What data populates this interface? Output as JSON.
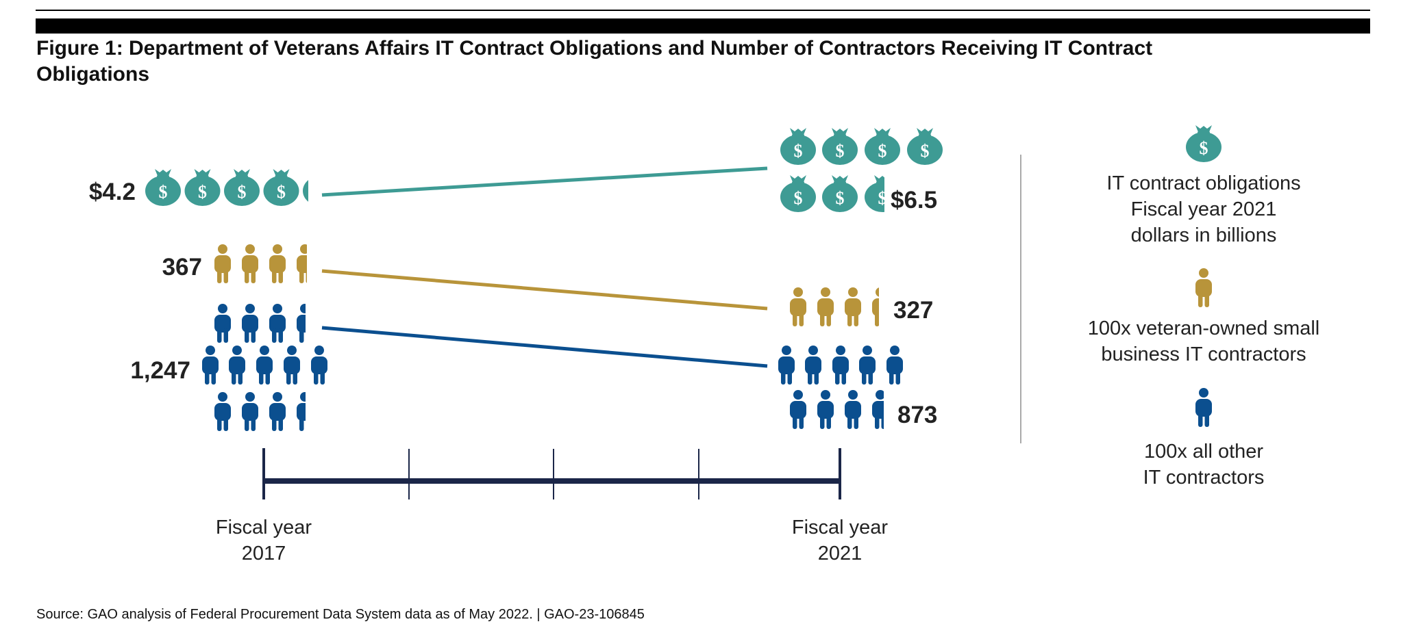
{
  "title": "Figure 1: Department of Veterans Affairs IT Contract Obligations and Number of Contractors Receiving IT Contract Obligations",
  "source": "Source: GAO analysis of Federal Procurement Data System data as of May 2022. | GAO-23-106845",
  "colors": {
    "obligations": "#3e9b94",
    "veteran_owned": "#b8943a",
    "other": "#0b4f8f",
    "axis": "#1b2648",
    "divider": "#aaaaaa"
  },
  "icons": {
    "obligations": "money-bag-icon",
    "veteran_owned": "person-icon",
    "other": "person-icon"
  },
  "chart_data": {
    "type": "pictograph-slope",
    "categories": [
      "Fiscal year 2017",
      "Fiscal year 2021"
    ],
    "x_labels": [
      [
        "Fiscal year",
        "2017"
      ],
      [
        "Fiscal year",
        "2021"
      ]
    ],
    "series": [
      {
        "key": "obligations",
        "name": "IT contract obligations Fiscal year 2021 dollars in billions",
        "values": [
          4.2,
          6.5
        ],
        "value_labels": [
          "$4.2",
          "$6.5"
        ],
        "icon": "money-bag-icon",
        "icon_glyph": "$",
        "icon_unit": 1
      },
      {
        "key": "veteran_owned",
        "name": "100x veteran-owned small business IT contractors",
        "values": [
          367,
          327
        ],
        "value_labels": [
          "367",
          "327"
        ],
        "icon": "person-icon",
        "icon_unit": 100
      },
      {
        "key": "other",
        "name": "100x all other IT contractors",
        "values": [
          1247,
          873
        ],
        "value_labels": [
          "1,247",
          "873"
        ],
        "icon": "person-icon",
        "icon_unit": 100
      }
    ],
    "legend": [
      {
        "key": "obligations",
        "icon": "money-bag-icon",
        "lines": [
          "IT contract obligations",
          "Fiscal year 2021",
          "dollars in billions"
        ]
      },
      {
        "key": "veteran_owned",
        "icon": "person-icon",
        "lines": [
          "100x veteran-owned small",
          "business IT contractors"
        ]
      },
      {
        "key": "other",
        "icon": "person-icon",
        "lines": [
          "100x all other",
          "IT contractors"
        ]
      }
    ],
    "legend_position": "right",
    "grid": false
  }
}
